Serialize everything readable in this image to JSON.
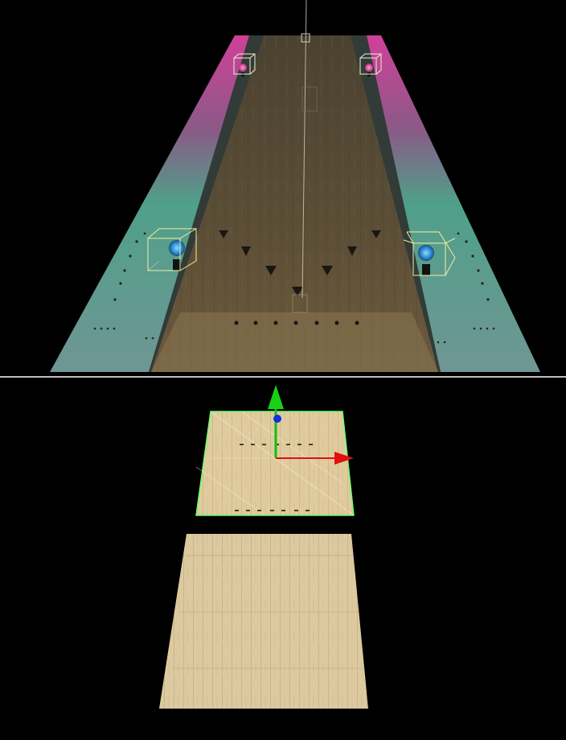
{
  "viewports": [
    {
      "id": "perspective",
      "label": ""
    },
    {
      "id": "top",
      "label": ""
    }
  ],
  "colors": {
    "background": "#000000",
    "divider": "#bdbdbd",
    "lane_wood_dark": "#5a4b34",
    "lane_wood_light": "#dcc79a",
    "gutter_magenta": "#c8448e",
    "gutter_teal": "#5a9c8c",
    "light_gizmo_blue": "#2f8fd6",
    "axis_x": "#e01010",
    "axis_y": "#10c010",
    "axis_z": "#1030e0",
    "selection_outline": "#6cff6c"
  },
  "selection": {
    "object": "lane-floor-tile",
    "gizmo": "translate"
  }
}
